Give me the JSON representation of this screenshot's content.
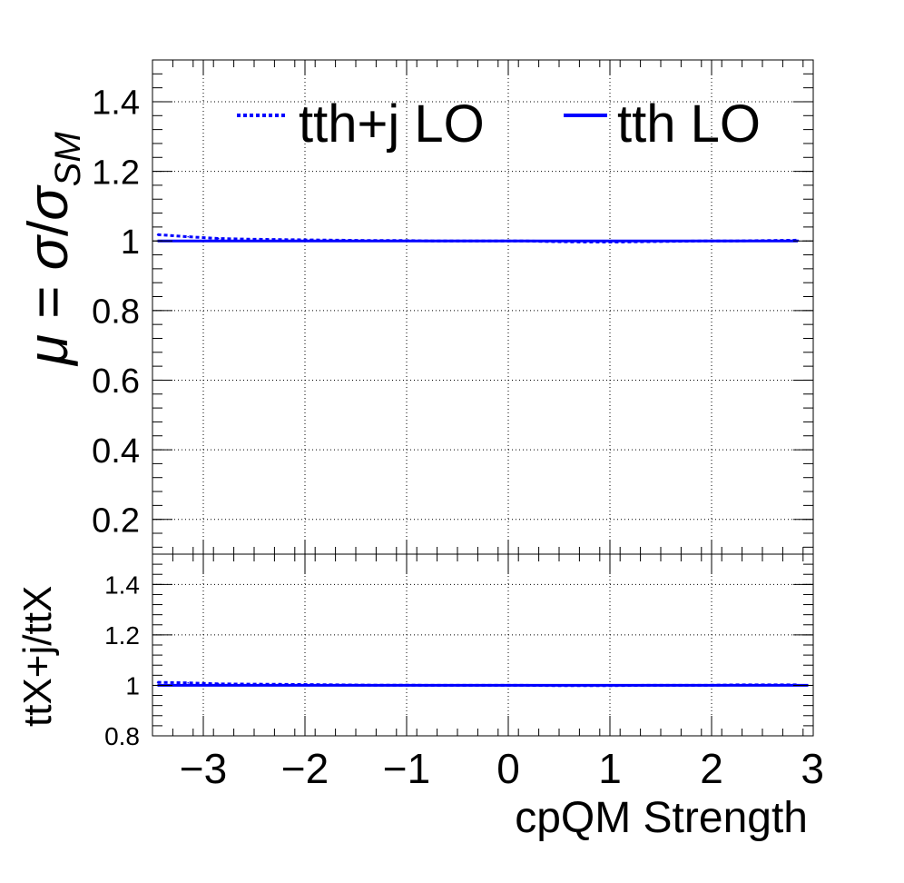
{
  "chart_data": [
    {
      "type": "line",
      "panel": "main",
      "ylabel_parts": {
        "mu": "μ",
        "eq": " = ",
        "sigma": "σ",
        "slash": "/",
        "sub": "SM"
      },
      "xlim": [
        -3.5,
        3.0
      ],
      "ylim": [
        0.1,
        1.52
      ],
      "yticks": [
        0.2,
        0.4,
        0.6,
        0.8,
        1.0,
        1.2,
        1.4
      ],
      "ytick_labels": [
        "0.2",
        "0.4",
        "0.6",
        "0.8",
        "1",
        "1.2",
        "1.4"
      ],
      "grid": true,
      "legend_placement": "top",
      "series": [
        {
          "name": "tth+j LO",
          "style": "dotted",
          "color": "#0000ff",
          "x": [
            -3.45,
            -3.15,
            -2.85,
            -2.55,
            -2.25,
            -1.95,
            -1.65,
            -1.35,
            -1.05,
            -0.75,
            -0.45,
            -0.15,
            0.15,
            0.45,
            0.75,
            1.05,
            1.35,
            1.65,
            1.95,
            2.25,
            2.55,
            2.85
          ],
          "values": [
            1.018,
            1.012,
            1.007,
            1.005,
            1.004,
            1.003,
            1.002,
            1.001,
            1.001,
            1.0,
            1.0,
            1.0,
            1.0,
            0.998,
            0.997,
            0.997,
            0.998,
            0.999,
            1.0,
            1.0,
            1.001,
            1.002
          ]
        },
        {
          "name": "tth LO",
          "style": "solid",
          "color": "#0000ff",
          "x": [
            -3.45,
            -3.15,
            -2.85,
            -2.55,
            -2.25,
            -1.95,
            -1.65,
            -1.35,
            -1.05,
            -0.75,
            -0.45,
            -0.15,
            0.15,
            0.45,
            0.75,
            1.05,
            1.35,
            1.65,
            1.95,
            2.25,
            2.55,
            2.85
          ],
          "values": [
            1.0,
            1.0,
            1.0,
            1.0,
            1.0,
            1.0,
            1.0,
            1.0,
            1.0,
            1.0,
            1.0,
            1.0,
            1.0,
            1.0,
            1.0,
            1.0,
            1.0,
            1.0,
            1.0,
            1.0,
            1.0,
            1.0
          ]
        }
      ]
    },
    {
      "type": "line",
      "panel": "ratio",
      "xlabel": "cpQM Strength",
      "ylabel": "ttX+j/ttX",
      "xlim": [
        -3.5,
        3.0
      ],
      "ylim": [
        0.8,
        1.52
      ],
      "xticks": [
        -3,
        -2,
        -1,
        0,
        1,
        2,
        3
      ],
      "xtick_labels": [
        "−3",
        "−2",
        "−1",
        "0",
        "1",
        "2",
        "3"
      ],
      "yticks": [
        0.8,
        1.0,
        1.2,
        1.4
      ],
      "ytick_labels": [
        "0.8",
        "1",
        "1.2",
        "1.4"
      ],
      "grid": true,
      "series": [
        {
          "style": "dotted",
          "color": "#0000ff",
          "x": [
            -3.45,
            -3.15,
            -2.85,
            -2.55,
            -2.25,
            -1.95,
            -1.65,
            -1.35,
            -1.05,
            -0.75,
            -0.45,
            -0.15,
            0.15,
            0.45,
            0.75,
            1.05,
            1.35,
            1.65,
            1.95,
            2.25,
            2.55,
            2.85
          ],
          "values": [
            1.012,
            1.01,
            1.006,
            1.005,
            1.004,
            1.003,
            1.002,
            1.001,
            1.001,
            1.0,
            1.0,
            1.0,
            1.0,
            0.999,
            0.999,
            0.999,
            1.0,
            1.0,
            1.0,
            1.002,
            1.002,
            1.002
          ]
        },
        {
          "style": "solid",
          "color": "#0000ff",
          "x": [
            -3.45,
            2.95
          ],
          "values": [
            1.0,
            1.0
          ]
        }
      ]
    }
  ]
}
